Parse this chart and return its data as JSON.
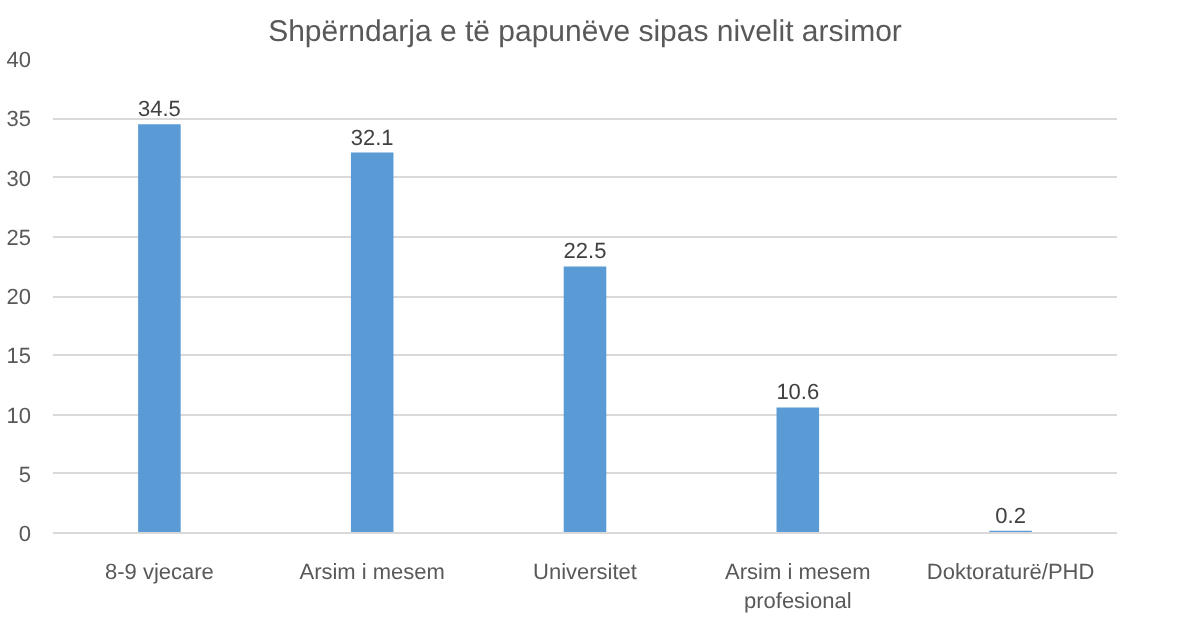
{
  "chart_data": {
    "type": "bar",
    "title": "Shpërndarja e të papunëve sipas nivelit arsimor",
    "categories": [
      "8-9 vjecare",
      "Arsim i mesem",
      "Universitet",
      "Arsim i mesem profesional",
      "Doktoraturë/PHD"
    ],
    "values": [
      34.5,
      32.1,
      22.5,
      10.6,
      0.2
    ],
    "color": "#5b9bd5",
    "ylim": [
      0,
      40
    ],
    "yticks": [
      0,
      5,
      10,
      15,
      20,
      25,
      30,
      35,
      40
    ],
    "grid": "y",
    "data_labels": true
  }
}
